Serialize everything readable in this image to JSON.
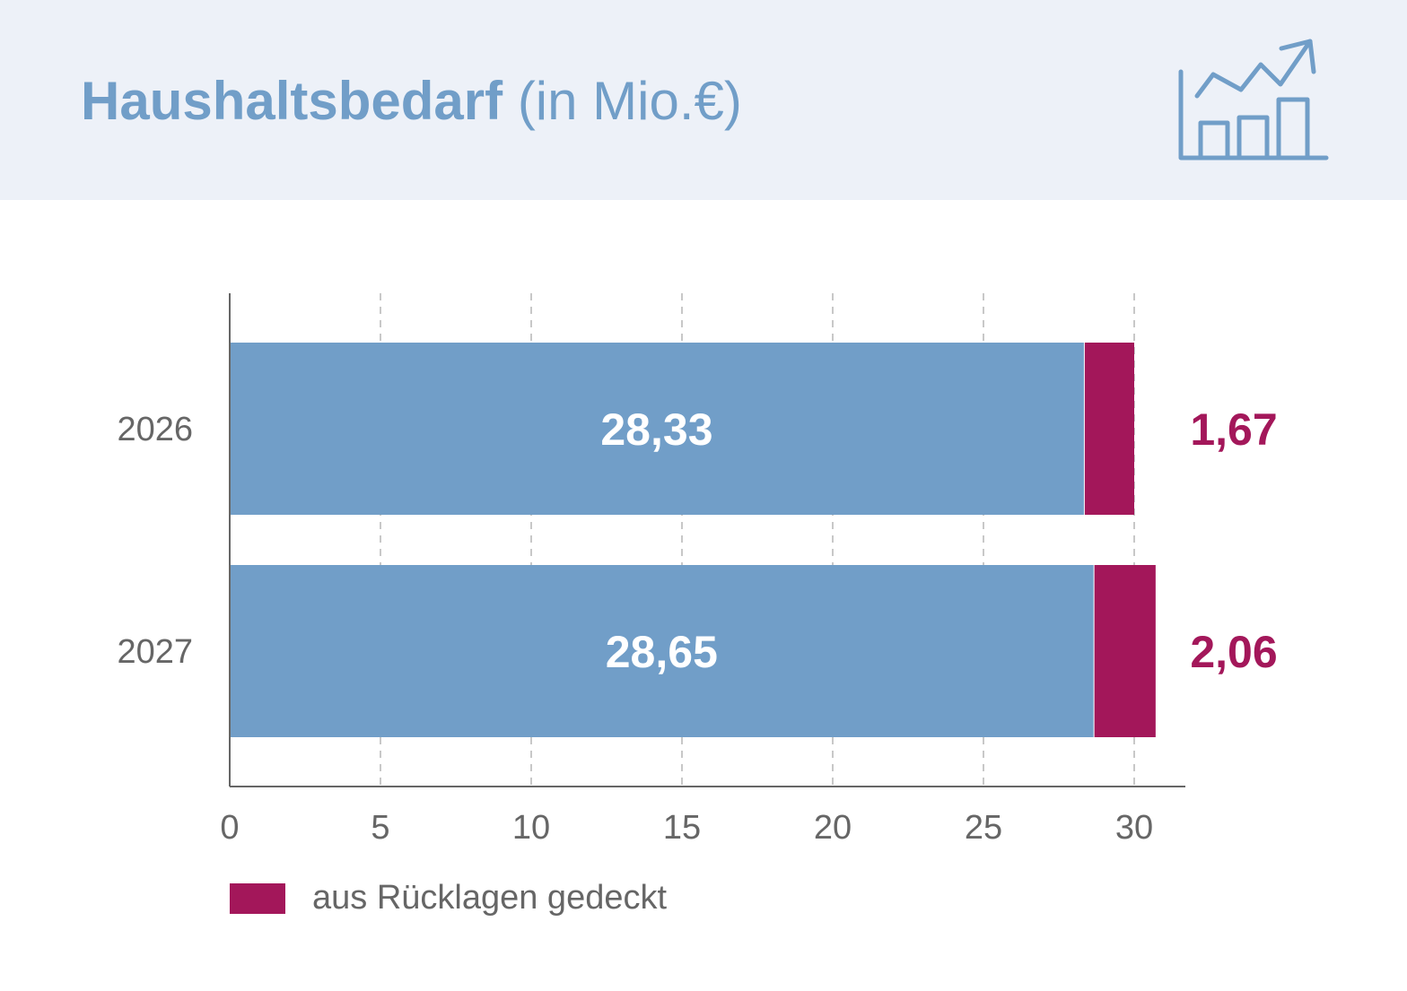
{
  "header": {
    "title_bold": "Haushaltsbedarf",
    "title_unit": "(in Mio.€)",
    "icon": "bar-chart-trend-up-icon"
  },
  "colors": {
    "header_bg": "#edf1f8",
    "primary": "#719ec8",
    "reserves": "#a3175a",
    "axis": "#666666",
    "grid": "#c8c8c8"
  },
  "chart_data": {
    "type": "bar",
    "orientation": "horizontal",
    "stacked": true,
    "categories": [
      "2026",
      "2027"
    ],
    "series": [
      {
        "values": [
          28.33,
          28.65
        ],
        "labels": [
          "28,33",
          "28,65"
        ],
        "color": "#719ec8"
      },
      {
        "name": "aus Rücklagen gedeckt",
        "values": [
          1.67,
          2.06
        ],
        "labels": [
          "1,67",
          "2,06"
        ],
        "color": "#a3175a"
      }
    ],
    "xlim": [
      0,
      31.6
    ],
    "xticks": [
      0,
      5,
      10,
      15,
      20,
      25,
      30
    ],
    "xtick_labels": [
      "0",
      "5",
      "10",
      "15",
      "20",
      "25",
      "30"
    ],
    "grid": "vertical dashed",
    "legend": {
      "placement": "bottom-left",
      "entries": [
        "aus Rücklagen gedeckt"
      ]
    }
  }
}
